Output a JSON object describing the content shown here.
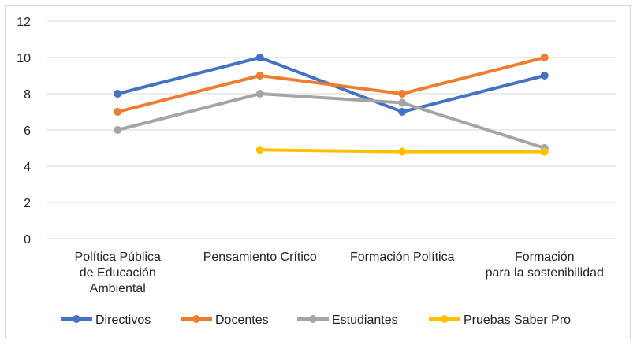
{
  "chart_data": {
    "type": "line",
    "title": "",
    "xlabel": "",
    "ylabel": "",
    "ylim": [
      0,
      12
    ],
    "yticks": [
      0,
      2,
      4,
      6,
      8,
      10,
      12
    ],
    "grid": true,
    "legend": "bottom",
    "categories": [
      [
        "Política Pública",
        "de Educación",
        "Ambiental"
      ],
      [
        "Pensamiento Crítico"
      ],
      [
        "Formación Política"
      ],
      [
        "Formación",
        "para la sostenibilidad"
      ]
    ],
    "series": [
      {
        "name": "Directivos",
        "color": "#4472C4",
        "values": [
          8,
          10,
          7,
          9
        ]
      },
      {
        "name": "Docentes",
        "color": "#ED7D31",
        "values": [
          7,
          9,
          8,
          10
        ]
      },
      {
        "name": "Estudiantes",
        "color": "#A5A5A5",
        "values": [
          6,
          8,
          7.5,
          5
        ]
      },
      {
        "name": "Pruebas Saber Pro",
        "color": "#FFC000",
        "values": [
          null,
          4.9,
          4.8,
          4.8
        ]
      }
    ]
  }
}
